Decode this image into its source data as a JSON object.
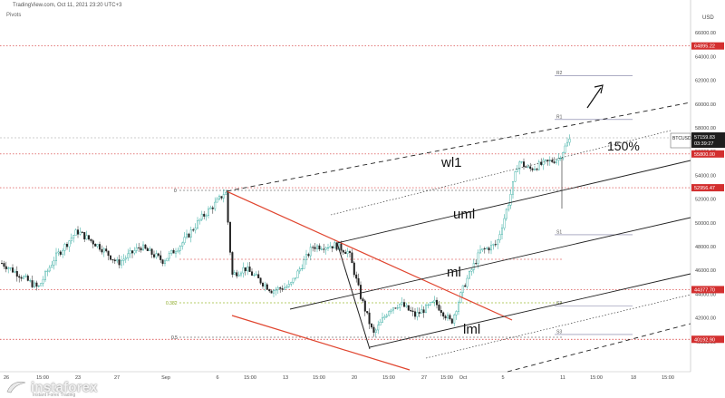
{
  "header": {
    "source": "TradingView.com, Oct 11, 2021 23:20 UTC+3",
    "indicator": "Pivots",
    "currency": "USD"
  },
  "chart_data": {
    "type": "candlestick",
    "symbol": "BTCUSD",
    "ylim": [
      39000,
      66500
    ],
    "y_ticks": [
      "66000.00",
      "64000.00",
      "62000.00",
      "60000.00",
      "58000.00",
      "56000.00",
      "54000.00",
      "52000.00",
      "50000.00",
      "48000.00",
      "46000.00",
      "44000.00",
      "42000.00",
      "40000.00"
    ],
    "x_ticks": [
      {
        "label": "26",
        "x": 7
      },
      {
        "label": "15:00",
        "x": 47
      },
      {
        "label": "23",
        "x": 86
      },
      {
        "label": "27",
        "x": 129
      },
      {
        "label": "Sep",
        "x": 183
      },
      {
        "label": "6",
        "x": 240
      },
      {
        "label": "15:00",
        "x": 276
      },
      {
        "label": "13",
        "x": 315
      },
      {
        "label": "15:00",
        "x": 352
      },
      {
        "label": "20",
        "x": 391
      },
      {
        "label": "15:00",
        "x": 429
      },
      {
        "label": "27",
        "x": 468
      },
      {
        "label": "15:00",
        "x": 493
      },
      {
        "label": "Oct",
        "x": 511
      },
      {
        "label": "5",
        "x": 555
      },
      {
        "label": "11",
        "x": 621
      },
      {
        "label": "15:00",
        "x": 658
      },
      {
        "label": "18",
        "x": 699
      },
      {
        "label": "15:00",
        "x": 737
      }
    ],
    "price_levels": [
      {
        "label": "64895.22",
        "value": 64895.22,
        "color": "#d32f2f",
        "style": "dotted"
      },
      {
        "label": "55800.00",
        "value": 55800.0,
        "color": "#d32f2f",
        "style": "dotted"
      },
      {
        "label": "52956.47",
        "value": 52956.47,
        "color": "#d32f2f",
        "style": "dotted"
      },
      {
        "label": "44377.70",
        "value": 44377.7,
        "color": "#d32f2f",
        "style": "dotted"
      },
      {
        "label": "40192.90",
        "value": 40192.9,
        "color": "#d32f2f",
        "style": "dotted"
      }
    ],
    "current_price": {
      "symbol": "BTCUSD",
      "price": "57159.83",
      "countdown": "03:39:27",
      "value": 57159.83
    },
    "pivot_levels": [
      {
        "label": "R2",
        "value": 62400
      },
      {
        "label": "R1",
        "value": 58700
      },
      {
        "label": "S1",
        "value": 49000
      },
      {
        "label": "S2",
        "value": 43000
      },
      {
        "label": "S3",
        "value": 40600
      }
    ],
    "fib_levels": [
      {
        "label": "0",
        "value": 53000
      },
      {
        "label": "0.382",
        "value": 44100
      },
      {
        "label": "0.5",
        "value": 41250
      }
    ],
    "annotations": {
      "wl1": "wl1",
      "uml": "uml",
      "ml": "ml",
      "lml": "lml",
      "pct": "150%"
    }
  },
  "colors": {
    "up": "#26a69a",
    "down": "#222222",
    "level": "#d32f2f",
    "channel": "#222222",
    "wedge": "#e0452f",
    "fib": "#9fbf3a"
  },
  "logo": {
    "name": "instaforex",
    "tagline": "Instant Forex Trading"
  }
}
